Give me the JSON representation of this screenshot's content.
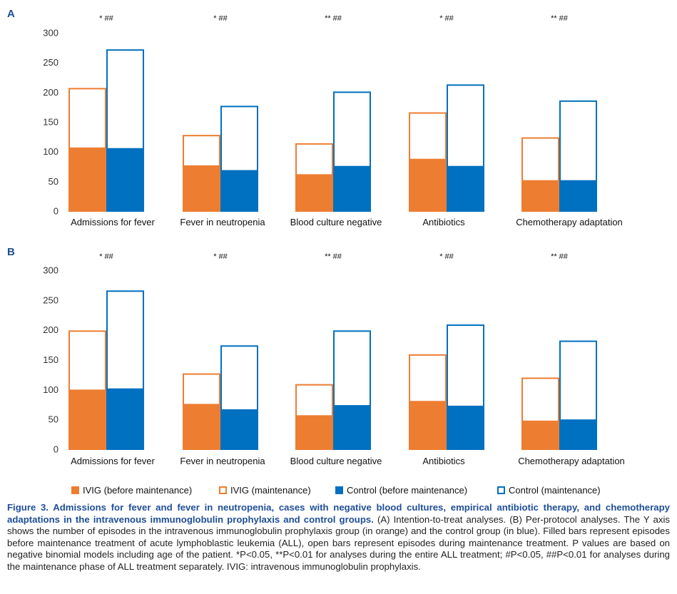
{
  "colors": {
    "ivig": "#ed7d31",
    "control": "#0070c0",
    "axis_text": "#333333",
    "panel_letter": "#1a4f8b",
    "caption_title": "#1f4e96"
  },
  "chart_data": [
    {
      "type": "bar",
      "panel": "A",
      "stacked_overlay": true,
      "categories": [
        "Admissions for fever",
        "Fever in neutropenia",
        "Blood culture negative",
        "Antibiotics",
        "Chemotherapy adaptation"
      ],
      "significance": [
        "* ##",
        "* ##",
        "** ##",
        "* ##",
        "** ##"
      ],
      "ylim": [
        0,
        300
      ],
      "yticks": [
        "0",
        "50",
        "100",
        "150",
        "200",
        "250",
        "300"
      ],
      "grid": false,
      "series": [
        {
          "name": "IVIG (before maintenance)",
          "group": "ivig",
          "style": "filled",
          "values": [
            107,
            77,
            62,
            88,
            52
          ]
        },
        {
          "name": "IVIG (maintenance)",
          "group": "ivig",
          "style": "open",
          "values": [
            206,
            127,
            113,
            165,
            123
          ]
        },
        {
          "name": "Control (before maintenance)",
          "group": "control",
          "style": "filled",
          "values": [
            106,
            69,
            76,
            76,
            52
          ]
        },
        {
          "name": "Control (maintenance)",
          "group": "control",
          "style": "open",
          "values": [
            271,
            176,
            200,
            212,
            185
          ]
        }
      ]
    },
    {
      "type": "bar",
      "panel": "B",
      "stacked_overlay": true,
      "categories": [
        "Admissions for fever",
        "Fever in neutropenia",
        "Blood culture negative",
        "Antibiotics",
        "Chemotherapy adaptation"
      ],
      "significance": [
        "* ##",
        "* ##",
        "** ##",
        "* ##",
        "** ##"
      ],
      "ylim": [
        0,
        300
      ],
      "yticks": [
        "0",
        "50",
        "100",
        "150",
        "200",
        "250",
        "300"
      ],
      "grid": false,
      "series": [
        {
          "name": "IVIG (before maintenance)",
          "group": "ivig",
          "style": "filled",
          "values": [
            100,
            76,
            57,
            81,
            48
          ]
        },
        {
          "name": "IVIG (maintenance)",
          "group": "ivig",
          "style": "open",
          "values": [
            198,
            126,
            108,
            158,
            119
          ]
        },
        {
          "name": "Control (before maintenance)",
          "group": "control",
          "style": "filled",
          "values": [
            102,
            67,
            74,
            73,
            50
          ]
        },
        {
          "name": "Control (maintenance)",
          "group": "control",
          "style": "open",
          "values": [
            265,
            173,
            198,
            208,
            181
          ]
        }
      ]
    }
  ],
  "legend": {
    "items": [
      {
        "label": "IVIG (before maintenance)"
      },
      {
        "label": "IVIG (maintenance)"
      },
      {
        "label": "Control (before maintenance)"
      },
      {
        "label": "Control (maintenance)"
      }
    ]
  },
  "caption": {
    "title": "Figure 3. Admissions for fever and fever in neutropenia, cases with negative blood cultures, empirical antibiotic therapy, and chemotherapy adaptations in the intravenous immunoglobulin prophylaxis and control groups.",
    "text": "(A) Intention-to-treat analyses. (B) Per-protocol analyses. The Y axis shows the number of episodes in the intravenous immunoglobulin prophylaxis group (in orange) and the control group (in blue). Filled bars represent episodes before maintenance treatment of acute lymphoblastic leukemia (ALL), open bars represent episodes during maintenance treatment. P values are based on negative binomial models including age of the patient. *P<0.05, **P<0.01 for analyses during the entire ALL treatment; #P<0.05, ##P<0.01 for analyses during the maintenance phase of ALL treatment separately. IVIG: intravenous immunoglobulin prophylaxis."
  }
}
